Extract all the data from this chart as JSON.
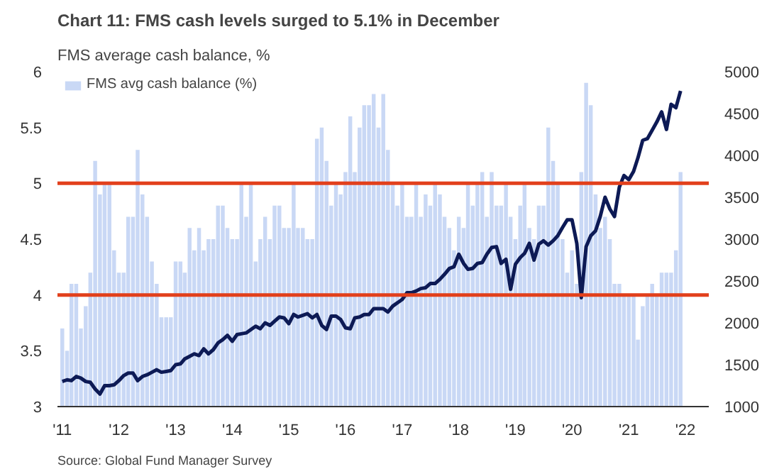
{
  "chart_data": {
    "type": "bar",
    "title": "Chart 11: FMS cash levels surged to 5.1% in December",
    "subtitle": "FMS average cash balance, %",
    "annotations": [
      "Source: Global Fund Manager Survey"
    ],
    "x": [
      "2011-01",
      "2011-02",
      "2011-03",
      "2011-04",
      "2011-05",
      "2011-06",
      "2011-07",
      "2011-08",
      "2011-09",
      "2011-10",
      "2011-11",
      "2011-12",
      "2012-01",
      "2012-02",
      "2012-03",
      "2012-04",
      "2012-05",
      "2012-06",
      "2012-07",
      "2012-08",
      "2012-09",
      "2012-10",
      "2012-11",
      "2012-12",
      "2013-01",
      "2013-02",
      "2013-03",
      "2013-04",
      "2013-05",
      "2013-06",
      "2013-07",
      "2013-08",
      "2013-09",
      "2013-10",
      "2013-11",
      "2013-12",
      "2014-01",
      "2014-02",
      "2014-03",
      "2014-04",
      "2014-05",
      "2014-06",
      "2014-07",
      "2014-08",
      "2014-09",
      "2014-10",
      "2014-11",
      "2014-12",
      "2015-01",
      "2015-02",
      "2015-03",
      "2015-04",
      "2015-05",
      "2015-06",
      "2015-07",
      "2015-08",
      "2015-09",
      "2015-10",
      "2015-11",
      "2015-12",
      "2016-01",
      "2016-02",
      "2016-03",
      "2016-04",
      "2016-05",
      "2016-06",
      "2016-07",
      "2016-08",
      "2016-09",
      "2016-10",
      "2016-11",
      "2016-12",
      "2017-01",
      "2017-02",
      "2017-03",
      "2017-04",
      "2017-05",
      "2017-06",
      "2017-07",
      "2017-08",
      "2017-09",
      "2017-10",
      "2017-11",
      "2017-12",
      "2018-01",
      "2018-02",
      "2018-03",
      "2018-04",
      "2018-05",
      "2018-06",
      "2018-07",
      "2018-08",
      "2018-09",
      "2018-10",
      "2018-11",
      "2018-12",
      "2019-01",
      "2019-02",
      "2019-03",
      "2019-04",
      "2019-05",
      "2019-06",
      "2019-07",
      "2019-08",
      "2019-09",
      "2019-10",
      "2019-11",
      "2019-12",
      "2020-01",
      "2020-02",
      "2020-03",
      "2020-04",
      "2020-05",
      "2020-06",
      "2020-07",
      "2020-08",
      "2020-09",
      "2020-10",
      "2020-11",
      "2020-12",
      "2021-01",
      "2021-02",
      "2021-03",
      "2021-04",
      "2021-05",
      "2021-06",
      "2021-07",
      "2021-08",
      "2021-09",
      "2021-10",
      "2021-11",
      "2021-12"
    ],
    "series": [
      {
        "name": "FMS avg cash balance (%)",
        "color": "#c9d8f5",
        "values": [
          3.7,
          3.5,
          4.1,
          4.1,
          3.7,
          3.9,
          4.2,
          5.2,
          4.9,
          5.0,
          5.0,
          4.4,
          4.2,
          4.2,
          4.7,
          4.7,
          5.3,
          4.9,
          4.7,
          4.3,
          4.1,
          3.8,
          3.8,
          3.8,
          4.3,
          4.3,
          4.2,
          4.6,
          4.4,
          4.6,
          4.4,
          4.5,
          4.5,
          4.8,
          4.8,
          4.6,
          4.5,
          4.5,
          5.0,
          4.7,
          5.0,
          4.3,
          4.5,
          4.7,
          4.5,
          4.8,
          4.8,
          4.6,
          4.6,
          5.0,
          4.6,
          4.6,
          4.5,
          4.5,
          5.4,
          5.5,
          5.2,
          4.8,
          5.0,
          4.9,
          5.1,
          5.6,
          5.1,
          5.5,
          5.7,
          5.7,
          5.8,
          5.5,
          5.8,
          5.3,
          5.0,
          4.8,
          5.0,
          4.7,
          4.7,
          5.0,
          4.7,
          4.9,
          4.8,
          5.0,
          4.9,
          4.7,
          4.6,
          4.4,
          4.7,
          4.6,
          5.0,
          4.8,
          5.0,
          5.1,
          4.7,
          5.1,
          4.8,
          4.8,
          5.0,
          4.7,
          4.5,
          4.8,
          5.0,
          4.6,
          4.5,
          4.8,
          4.8,
          5.5,
          5.2,
          5.0,
          4.5,
          4.2,
          4.4,
          4.1,
          5.1,
          5.9,
          5.7,
          4.9,
          4.6,
          4.7,
          4.5,
          4.1,
          4.1,
          4.0,
          4.0,
          4.0,
          3.6,
          3.9,
          4.0,
          4.1,
          4.0,
          4.2,
          4.2,
          4.2,
          4.4,
          5.1
        ]
      },
      {
        "type": "line",
        "axis": "y2",
        "color": "#0d1a55",
        "values": [
          1300,
          1320,
          1310,
          1360,
          1340,
          1300,
          1290,
          1210,
          1150,
          1250,
          1250,
          1260,
          1310,
          1370,
          1400,
          1400,
          1310,
          1360,
          1380,
          1410,
          1440,
          1410,
          1420,
          1430,
          1500,
          1510,
          1570,
          1600,
          1630,
          1610,
          1690,
          1630,
          1680,
          1760,
          1800,
          1850,
          1780,
          1860,
          1870,
          1880,
          1920,
          1960,
          1930,
          2000,
          1970,
          2020,
          2070,
          2060,
          1990,
          2100,
          2070,
          2090,
          2110,
          2060,
          2100,
          1970,
          1920,
          2080,
          2080,
          2040,
          1940,
          1930,
          2060,
          2070,
          2100,
          2100,
          2170,
          2170,
          2170,
          2130,
          2200,
          2240,
          2280,
          2360,
          2360,
          2380,
          2410,
          2420,
          2470,
          2470,
          2520,
          2580,
          2650,
          2670,
          2820,
          2710,
          2640,
          2650,
          2710,
          2720,
          2820,
          2900,
          2910,
          2710,
          2760,
          2400,
          2700,
          2780,
          2830,
          2950,
          2750,
          2940,
          2980,
          2930,
          2980,
          3040,
          3140,
          3230,
          3230,
          2950,
          2300,
          2910,
          3040,
          3100,
          3270,
          3500,
          3360,
          3270,
          3620,
          3760,
          3710,
          3810,
          3970,
          4180,
          4200,
          4300,
          4400,
          4520,
          4310,
          4610,
          4570,
          4770
        ]
      }
    ],
    "xlim": [
      "2010-12-01",
      "2022-06-01"
    ],
    "xticks": [
      {
        "value": "2011-01",
        "label": "'11"
      },
      {
        "value": "2012-01",
        "label": "'12"
      },
      {
        "value": "2013-01",
        "label": "'13"
      },
      {
        "value": "2014-01",
        "label": "'14"
      },
      {
        "value": "2015-01",
        "label": "'15"
      },
      {
        "value": "2016-01",
        "label": "'16"
      },
      {
        "value": "2017-01",
        "label": "'17"
      },
      {
        "value": "2018-01",
        "label": "'18"
      },
      {
        "value": "2019-01",
        "label": "'19"
      },
      {
        "value": "2020-01",
        "label": "'20"
      },
      {
        "value": "2021-01",
        "label": "'21"
      },
      {
        "value": "2022-01",
        "label": "'22"
      }
    ],
    "ylim": [
      3,
      6
    ],
    "yticks": [
      3,
      3.5,
      4,
      4.5,
      5,
      5.5,
      6
    ],
    "y2lim": [
      1000,
      5000
    ],
    "y2ticks": [
      1000,
      1500,
      2000,
      2500,
      3000,
      3500,
      4000,
      4500,
      5000
    ],
    "ref_lines": [
      {
        "axis": "y",
        "value": 5,
        "color": "#e2401c"
      },
      {
        "axis": "y",
        "value": 4,
        "color": "#e2401c"
      }
    ],
    "grid": false,
    "legend": "top"
  }
}
